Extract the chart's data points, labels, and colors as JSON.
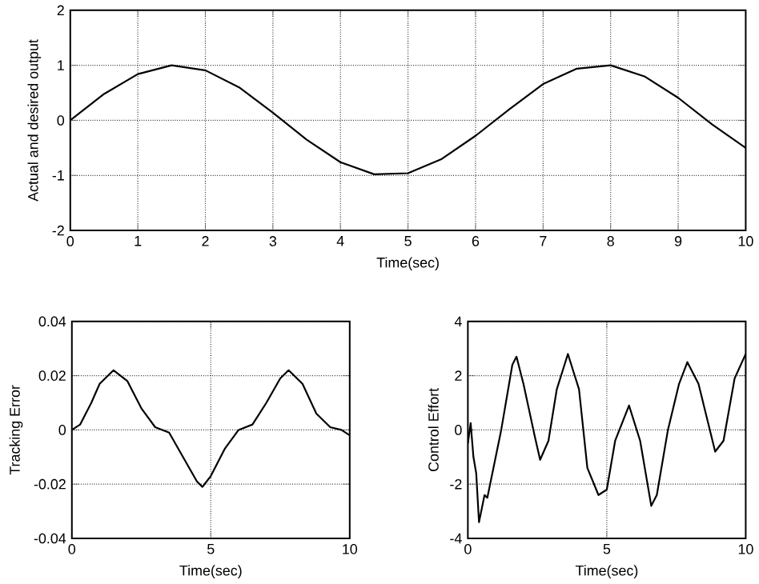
{
  "chart_data": [
    {
      "type": "line",
      "xlabel": "Time(sec)",
      "ylabel": "Actual and desired output",
      "xlim": [
        0,
        10
      ],
      "ylim": [
        -2,
        2
      ],
      "xticks": [
        0,
        1,
        2,
        3,
        4,
        5,
        6,
        7,
        8,
        9,
        10
      ],
      "yticks": [
        -2,
        -1,
        0,
        1,
        2
      ],
      "grid": true,
      "series": [
        {
          "color": "#000000",
          "x": [
            0,
            0.5,
            1,
            1.5,
            2,
            2.5,
            3,
            3.5,
            4,
            4.5,
            5,
            5.5,
            6,
            6.5,
            7,
            7.5,
            8,
            8.5,
            9,
            9.5,
            10
          ],
          "values": [
            0,
            0.48,
            0.84,
            1.0,
            0.91,
            0.6,
            0.14,
            -0.35,
            -0.76,
            -0.98,
            -0.96,
            -0.7,
            -0.28,
            0.2,
            0.66,
            0.94,
            1.0,
            0.8,
            0.41,
            -0.07,
            -0.5
          ]
        }
      ]
    },
    {
      "type": "line",
      "xlabel": "Time(sec)",
      "ylabel": "Tracking Error",
      "xlim": [
        0,
        10
      ],
      "ylim": [
        -0.04,
        0.04
      ],
      "xticks": [
        0,
        5,
        10
      ],
      "yticks": [
        -0.04,
        -0.02,
        0,
        0.02,
        0.04
      ],
      "grid": true,
      "series": [
        {
          "color": "#000000",
          "x": [
            0,
            0.3,
            0.7,
            1,
            1.5,
            2,
            2.5,
            3,
            3.5,
            4,
            4.5,
            4.7,
            5,
            5.5,
            6,
            6.5,
            7,
            7.5,
            7.8,
            8.3,
            8.8,
            9.3,
            9.7,
            10
          ],
          "values": [
            0,
            0.002,
            0.01,
            0.017,
            0.022,
            0.018,
            0.008,
            0.001,
            -0.001,
            -0.01,
            -0.019,
            -0.021,
            -0.017,
            -0.007,
            0,
            0.002,
            0.01,
            0.019,
            0.022,
            0.017,
            0.006,
            0.001,
            0,
            -0.002
          ]
        }
      ]
    },
    {
      "type": "line",
      "xlabel": "Time(sec)",
      "ylabel": "Control Effort",
      "xlim": [
        0,
        10
      ],
      "ylim": [
        -4,
        4
      ],
      "xticks": [
        0,
        5,
        10
      ],
      "yticks": [
        -4,
        -2,
        0,
        2,
        4
      ],
      "grid": true,
      "series": [
        {
          "color": "#000000",
          "x": [
            0,
            0.1,
            0.2,
            0.3,
            0.4,
            0.6,
            0.7,
            1.2,
            1.6,
            1.75,
            2.0,
            2.4,
            2.6,
            2.9,
            3.2,
            3.6,
            4.0,
            4.3,
            4.7,
            5.0,
            5.3,
            5.8,
            6.2,
            6.6,
            6.8,
            7.2,
            7.6,
            7.9,
            8.3,
            8.9,
            9.2,
            9.6,
            10
          ],
          "values": [
            -0.5,
            0.25,
            -1,
            -1.6,
            -3.4,
            -2.4,
            -2.5,
            0,
            2.4,
            2.7,
            1.7,
            -0.2,
            -1.1,
            -0.4,
            1.5,
            2.8,
            1.5,
            -1.4,
            -2.4,
            -2.2,
            -0.4,
            0.9,
            -0.4,
            -2.8,
            -2.4,
            0,
            1.7,
            2.5,
            1.7,
            -0.8,
            -0.4,
            1.9,
            2.8
          ]
        }
      ]
    }
  ]
}
